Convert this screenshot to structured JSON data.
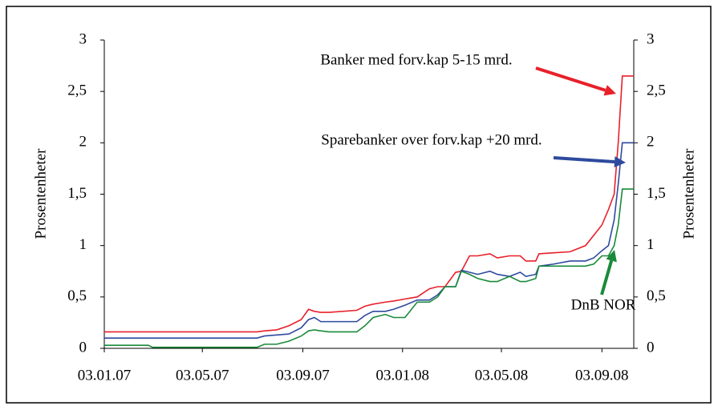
{
  "chart_data": {
    "type": "line",
    "y_label": "Prosentenheter",
    "y2_label": "Prosentenheter",
    "x": [
      "2007-01-03",
      "2007-02-26",
      "2007-03-03",
      "2007-07-09",
      "2007-07-18",
      "2007-08-02",
      "2007-08-17",
      "2007-09-01",
      "2007-09-10",
      "2007-09-17",
      "2007-09-25",
      "2007-10-05",
      "2007-11-08",
      "2007-11-18",
      "2007-11-28",
      "2007-12-13",
      "2007-12-23",
      "2008-01-06",
      "2008-01-21",
      "2008-02-05",
      "2008-02-15",
      "2008-02-24",
      "2008-03-08",
      "2008-03-15",
      "2008-03-25",
      "2008-04-04",
      "2008-04-19",
      "2008-04-28",
      "2008-05-13",
      "2008-05-26",
      "2008-06-02",
      "2008-06-14",
      "2008-06-18",
      "2008-07-06",
      "2008-07-26",
      "2008-08-14",
      "2008-08-24",
      "2008-09-03",
      "2008-09-11",
      "2008-09-18",
      "2008-09-23",
      "2008-09-28",
      "2008-10-12"
    ],
    "series": [
      {
        "name": "Banker med forv.kap 5-15 mrd.",
        "color": "#e8202a",
        "values": [
          0.16,
          0.16,
          0.16,
          0.16,
          0.17,
          0.18,
          0.22,
          0.28,
          0.38,
          0.36,
          0.35,
          0.35,
          0.37,
          0.41,
          0.43,
          0.45,
          0.46,
          0.48,
          0.5,
          0.58,
          0.6,
          0.6,
          0.74,
          0.75,
          0.9,
          0.9,
          0.92,
          0.88,
          0.9,
          0.9,
          0.85,
          0.85,
          0.92,
          0.93,
          0.94,
          1.0,
          1.1,
          1.2,
          1.35,
          1.5,
          2.0,
          2.65,
          2.65
        ]
      },
      {
        "name": "Sparebanker over forv.kap +20 mrd.",
        "color": "#2e4a9e",
        "values": [
          0.1,
          0.1,
          0.1,
          0.1,
          0.12,
          0.13,
          0.14,
          0.2,
          0.28,
          0.3,
          0.26,
          0.26,
          0.26,
          0.32,
          0.36,
          0.36,
          0.38,
          0.42,
          0.47,
          0.47,
          0.52,
          0.6,
          0.6,
          0.76,
          0.74,
          0.72,
          0.75,
          0.72,
          0.7,
          0.74,
          0.7,
          0.72,
          0.8,
          0.82,
          0.85,
          0.85,
          0.88,
          0.95,
          1.0,
          1.25,
          1.6,
          2.0,
          2.0
        ]
      },
      {
        "name": "DnB NOR",
        "color": "#1a8a3a",
        "values": [
          0.03,
          0.03,
          0.01,
          0.01,
          0.04,
          0.04,
          0.07,
          0.12,
          0.17,
          0.18,
          0.17,
          0.16,
          0.16,
          0.22,
          0.3,
          0.33,
          0.3,
          0.3,
          0.45,
          0.45,
          0.5,
          0.6,
          0.6,
          0.75,
          0.72,
          0.68,
          0.65,
          0.65,
          0.7,
          0.65,
          0.65,
          0.68,
          0.8,
          0.8,
          0.8,
          0.8,
          0.82,
          0.9,
          0.9,
          1.0,
          1.2,
          1.55,
          1.55
        ]
      }
    ],
    "xlim": [
      "2007-01-03",
      "2008-10-12"
    ],
    "xticks": [
      {
        "value": "2007-01-03",
        "label": "03.01.07"
      },
      {
        "value": "2007-05-03",
        "label": "03.05.07"
      },
      {
        "value": "2007-09-03",
        "label": "03.09.07"
      },
      {
        "value": "2008-01-03",
        "label": "03.01.08"
      },
      {
        "value": "2008-05-03",
        "label": "03.05.08"
      },
      {
        "value": "2008-09-03",
        "label": "03.09.08"
      }
    ],
    "ylim": [
      0,
      3
    ],
    "yticks": [
      0,
      {
        "value": 0.5,
        "label": "0,5"
      },
      1,
      {
        "value": 1.5,
        "label": "1,5"
      },
      2,
      {
        "value": 2.5,
        "label": "2,5"
      },
      3
    ],
    "y2lim": [
      0,
      3
    ],
    "y2ticks": [
      0,
      {
        "value": 0.5,
        "label": "0,5"
      },
      1,
      {
        "value": 1.5,
        "label": "1,5"
      },
      2,
      {
        "value": 2.5,
        "label": "2,5"
      },
      3
    ]
  }
}
